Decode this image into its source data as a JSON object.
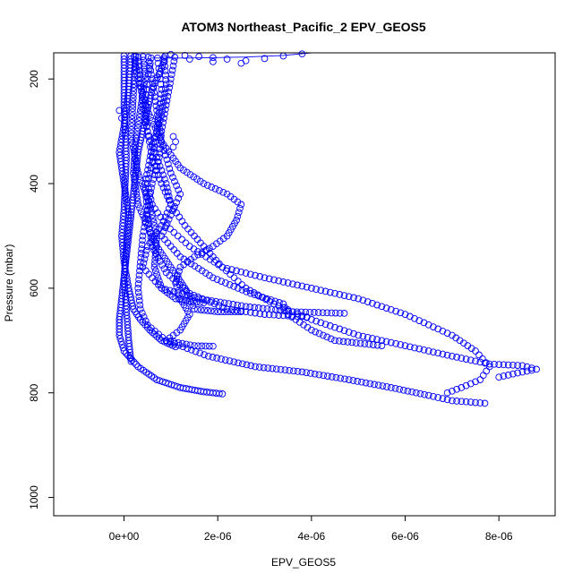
{
  "chart_data": {
    "type": "scatter",
    "title": "ATOM3 Northeast_Pacific_2 EPV_GEOS5",
    "xlabel": "EPV_GEOS5",
    "ylabel": "Pressure (mbar)",
    "xlim": [
      -1.5e-06,
      9.2e-06
    ],
    "ylim": [
      1035,
      150
    ],
    "y_reversed": true,
    "grid": false,
    "legend": "none",
    "color": "#0000ff",
    "x_ticks": [
      {
        "value": 0,
        "label": "0e+00"
      },
      {
        "value": 2e-06,
        "label": "2e-06"
      },
      {
        "value": 4e-06,
        "label": "4e-06"
      },
      {
        "value": 6e-06,
        "label": "6e-06"
      },
      {
        "value": 8e-06,
        "label": "8e-06"
      }
    ],
    "y_ticks": [
      {
        "value": 200,
        "label": "200"
      },
      {
        "value": 400,
        "label": "400"
      },
      {
        "value": 600,
        "label": "600"
      },
      {
        "value": 800,
        "label": "800"
      },
      {
        "value": 1000,
        "label": "1000"
      }
    ],
    "series": [
      {
        "profile": [
          [
            9e-07,
            150
          ],
          [
            8e-07,
            180
          ],
          [
            6e-07,
            220
          ],
          [
            5e-07,
            260
          ],
          [
            4e-07,
            300
          ],
          [
            3e-07,
            340
          ],
          [
            2.5e-07,
            380
          ],
          [
            2e-07,
            420
          ],
          [
            1.5e-07,
            460
          ],
          [
            1e-07,
            500
          ],
          [
            5e-08,
            540
          ],
          [
            0.0,
            580
          ],
          [
            -5e-08,
            620
          ],
          [
            -1e-07,
            660
          ],
          [
            -1e-07,
            690
          ],
          [
            0.0,
            720
          ],
          [
            3e-07,
            750
          ],
          [
            7e-07,
            775
          ],
          [
            1.2e-06,
            790
          ],
          [
            1.7e-06,
            798
          ],
          [
            2.1e-06,
            802
          ]
        ],
        "spacing": 3.5
      },
      {
        "profile": [
          [
            1.1e-06,
            150
          ],
          [
            1e-06,
            200
          ],
          [
            9e-07,
            250
          ],
          [
            8e-07,
            300
          ],
          [
            7.5e-07,
            350
          ],
          [
            6e-07,
            400
          ],
          [
            5e-07,
            450
          ],
          [
            4e-07,
            500
          ],
          [
            3.5e-07,
            550
          ],
          [
            3e-07,
            600
          ],
          [
            3.5e-07,
            640
          ],
          [
            5e-07,
            670
          ],
          [
            9e-07,
            700
          ],
          [
            1.8e-06,
            730
          ],
          [
            2.8e-06,
            750
          ],
          [
            3.8e-06,
            760
          ],
          [
            4.8e-06,
            775
          ],
          [
            5.7e-06,
            790
          ],
          [
            6.5e-06,
            805
          ],
          [
            7e-06,
            815
          ],
          [
            7.7e-06,
            820
          ]
        ],
        "spacing": 5
      },
      {
        "profile": [
          [
            6e-07,
            150
          ],
          [
            5e-07,
            200
          ],
          [
            4.5e-07,
            250
          ],
          [
            5e-07,
            300
          ],
          [
            6e-07,
            350
          ],
          [
            8e-07,
            400
          ],
          [
            1e-06,
            440
          ],
          [
            1.3e-06,
            480
          ],
          [
            1.7e-06,
            520
          ],
          [
            2.1e-06,
            560
          ],
          [
            2.6e-06,
            600
          ],
          [
            3.2e-06,
            630
          ],
          [
            4e-06,
            660
          ],
          [
            5e-06,
            690
          ],
          [
            6e-06,
            710
          ],
          [
            7e-06,
            730
          ],
          [
            7.8e-06,
            745
          ],
          [
            8.5e-06,
            748
          ],
          [
            8.8e-06,
            755
          ],
          [
            8.4e-06,
            762
          ],
          [
            8e-06,
            770
          ]
        ],
        "spacing": 5.5
      },
      {
        "profile": [
          [
            3e-07,
            150
          ],
          [
            3.5e-07,
            200
          ],
          [
            4e-07,
            250
          ],
          [
            5e-07,
            300
          ],
          [
            7e-07,
            350
          ],
          [
            9e-07,
            400
          ],
          [
            1e-06,
            440
          ],
          [
            8e-07,
            480
          ],
          [
            5e-07,
            520
          ],
          [
            4e-07,
            560
          ],
          [
            8e-07,
            600
          ],
          [
            1.6e-06,
            620
          ],
          [
            2.6e-06,
            635
          ],
          [
            3.6e-06,
            645
          ],
          [
            4.7e-06,
            648
          ]
        ],
        "spacing": 5
      },
      {
        "profile": [
          [
            2e-07,
            150
          ],
          [
            3e-07,
            200
          ],
          [
            5e-07,
            260
          ],
          [
            8e-07,
            320
          ],
          [
            1.2e-06,
            370
          ],
          [
            1.7e-06,
            400
          ],
          [
            2.2e-06,
            420
          ],
          [
            2.5e-06,
            440
          ],
          [
            2.4e-06,
            470
          ],
          [
            2.2e-06,
            500
          ],
          [
            1.9e-06,
            520
          ],
          [
            1.5e-06,
            540
          ],
          [
            1.2e-06,
            560
          ],
          [
            1.1e-06,
            590
          ],
          [
            1.2e-06,
            620
          ],
          [
            1.4e-06,
            650
          ],
          [
            1.2e-06,
            680
          ],
          [
            9e-07,
            700
          ],
          [
            1.5e-06,
            710
          ],
          [
            1.9e-06,
            711
          ]
        ],
        "spacing": 4.5
      },
      {
        "profile": [
          [
            5e-07,
            150
          ],
          [
            6e-07,
            200
          ],
          [
            7e-07,
            260
          ],
          [
            8e-07,
            320
          ],
          [
            1e-06,
            380
          ],
          [
            1.2e-06,
            420
          ],
          [
            1e-06,
            460
          ],
          [
            8e-07,
            500
          ],
          [
            1.2e-06,
            540
          ],
          [
            1.9e-06,
            580
          ],
          [
            2.7e-06,
            610
          ],
          [
            3.4e-06,
            630
          ],
          [
            3.5e-06,
            650
          ],
          [
            4e-06,
            680
          ],
          [
            4.5e-06,
            700
          ],
          [
            5.5e-06,
            710
          ]
        ],
        "spacing": 5
      },
      {
        "profile": [
          [
            0.0,
            150
          ],
          [
            0.0,
            250
          ],
          [
            5e-08,
            350
          ],
          [
            0.0,
            450
          ],
          [
            -5e-08,
            500
          ],
          [
            0.0,
            550
          ],
          [
            1e-07,
            600
          ],
          [
            2e-07,
            640
          ],
          [
            3.5e-07,
            660
          ],
          [
            5.5e-07,
            680
          ],
          [
            8e-07,
            700
          ],
          [
            1.1e-06,
            712
          ]
        ],
        "spacing": 3.5
      },
      {
        "profile": [
          [
            7e-07,
            150
          ],
          [
            8e-07,
            220
          ],
          [
            7e-07,
            300
          ],
          [
            6e-07,
            360
          ],
          [
            5e-07,
            400
          ],
          [
            6e-07,
            440
          ],
          [
            9e-07,
            480
          ],
          [
            1.4e-06,
            520
          ],
          [
            2.1e-06,
            560
          ],
          [
            3e-06,
            580
          ],
          [
            4e-06,
            600
          ],
          [
            5e-06,
            620
          ],
          [
            6e-06,
            650
          ],
          [
            7e-06,
            690
          ],
          [
            7.5e-06,
            720
          ],
          [
            7.8e-06,
            750
          ],
          [
            7.6e-06,
            775
          ],
          [
            7.2e-06,
            790
          ],
          [
            6.9e-06,
            800
          ]
        ],
        "spacing": 5.5
      },
      {
        "profile": [
          [
            4e-07,
            150
          ],
          [
            4.5e-07,
            200
          ],
          [
            3.5e-07,
            260
          ],
          [
            2.5e-07,
            320
          ],
          [
            2e-07,
            380
          ],
          [
            3e-07,
            440
          ],
          [
            5e-07,
            480
          ],
          [
            7e-07,
            520
          ],
          [
            1e-06,
            560
          ],
          [
            1.3e-06,
            600
          ],
          [
            1.5e-06,
            640
          ],
          [
            2e-06,
            645
          ],
          [
            2.5e-06,
            645
          ]
        ],
        "spacing": 4
      },
      {
        "profile": [
          [
            1.5e-07,
            150
          ],
          [
            1e-07,
            220
          ],
          [
            0.0,
            290
          ],
          [
            -1e-07,
            340
          ],
          [
            0.0,
            400
          ],
          [
            1e-07,
            460
          ],
          [
            5e-08,
            520
          ],
          [
            0.0,
            580
          ],
          [
            5e-08,
            640
          ],
          [
            1e-07,
            700
          ],
          [
            1.5e-07,
            740
          ]
        ],
        "spacing": 3.5
      },
      {
        "profile": [
          [
            8.5e-07,
            150
          ],
          [
            9e-07,
            210
          ],
          [
            8e-07,
            270
          ],
          [
            6e-07,
            330
          ],
          [
            4.5e-07,
            400
          ],
          [
            5e-07,
            460
          ],
          [
            6e-07,
            520
          ],
          [
            9e-07,
            570
          ],
          [
            1.4e-06,
            610
          ],
          [
            2.2e-06,
            640
          ],
          [
            3e-06,
            650
          ],
          [
            3.9e-06,
            655
          ]
        ],
        "spacing": 5
      },
      {
        "profile": [
          [
            2.5e-07,
            150
          ],
          [
            2e-07,
            230
          ],
          [
            1.5e-07,
            310
          ],
          [
            3e-07,
            380
          ],
          [
            5.5e-07,
            440
          ],
          [
            7e-07,
            500
          ],
          [
            6.5e-07,
            560
          ],
          [
            8e-07,
            600
          ],
          [
            1.1e-06,
            620
          ],
          [
            1.4e-06,
            625
          ],
          [
            1.7e-06,
            628
          ]
        ],
        "spacing": 4
      }
    ],
    "straggler_points": [
      [
        1e-06,
        153
      ],
      [
        1.3e-06,
        155
      ],
      [
        1.6e-06,
        157
      ],
      [
        1.9e-06,
        159
      ],
      [
        2.2e-06,
        162
      ],
      [
        2.6e-06,
        165
      ],
      [
        3e-06,
        161
      ],
      [
        3.4e-06,
        156
      ],
      [
        3.8e-06,
        152
      ],
      [
        4e-06,
        150
      ],
      [
        1.4e-06,
        162
      ],
      [
        1.9e-06,
        167
      ],
      [
        2.5e-06,
        170
      ],
      [
        -1e-07,
        260
      ],
      [
        -5e-08,
        275
      ],
      [
        1.05e-06,
        310
      ],
      [
        1.1e-06,
        320
      ],
      [
        1.05e-06,
        330
      ]
    ],
    "upper_line": [
      [
        6e-07,
        160
      ],
      [
        1.4e-06,
        160
      ],
      [
        2.6e-06,
        158
      ],
      [
        3.4e-06,
        155
      ],
      [
        4e-06,
        150
      ]
    ]
  }
}
